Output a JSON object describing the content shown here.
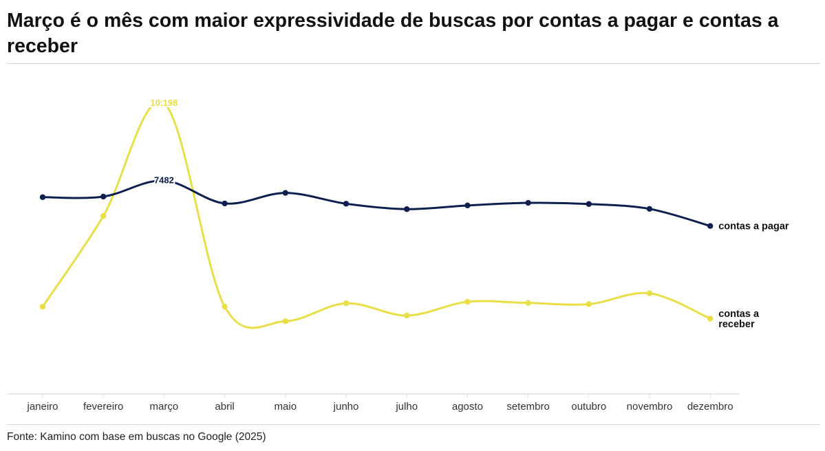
{
  "title": "Março é o mês com maior expressividade de buscas por contas a pagar e contas a receber",
  "source": "Fonte: Kamino com base em buscas no Google (2025)",
  "colors": {
    "pagar": "#0d1f4f",
    "receber": "#e8de45",
    "axis": "#dddddd"
  },
  "chart_data": {
    "type": "line",
    "title": "Março é o mês com maior expressividade de buscas por contas a pagar e contas a receber",
    "xlabel": "",
    "ylabel": "",
    "categories": [
      "janeiro",
      "fevereiro",
      "março",
      "abril",
      "maio",
      "junho",
      "julho",
      "agosto",
      "setembro",
      "outubro",
      "novembro",
      "dezembro"
    ],
    "ylim": [
      0,
      10198
    ],
    "grid": false,
    "legend": "end-of-line labels",
    "series": [
      {
        "name": "contas a pagar",
        "label_lines": [
          "contas a pagar"
        ],
        "color": "#0d1f4f",
        "values": [
          6900,
          6920,
          7482,
          6680,
          7050,
          6670,
          6480,
          6610,
          6700,
          6660,
          6490,
          5890
        ],
        "labels": [
          "",
          "",
          "7482",
          "",
          "",
          "",
          "",
          "",
          "",
          "",
          "",
          ""
        ]
      },
      {
        "name": "contas a receber",
        "label_lines": [
          "contas a",
          "receber"
        ],
        "color": "#e8de45",
        "values": [
          3060,
          6240,
          10198,
          3060,
          2550,
          3180,
          2750,
          3230,
          3190,
          3150,
          3530,
          2640
        ],
        "labels": [
          "",
          "",
          "10,198",
          "",
          "",
          "",
          "",
          "",
          "",
          "",
          "",
          ""
        ]
      }
    ]
  }
}
